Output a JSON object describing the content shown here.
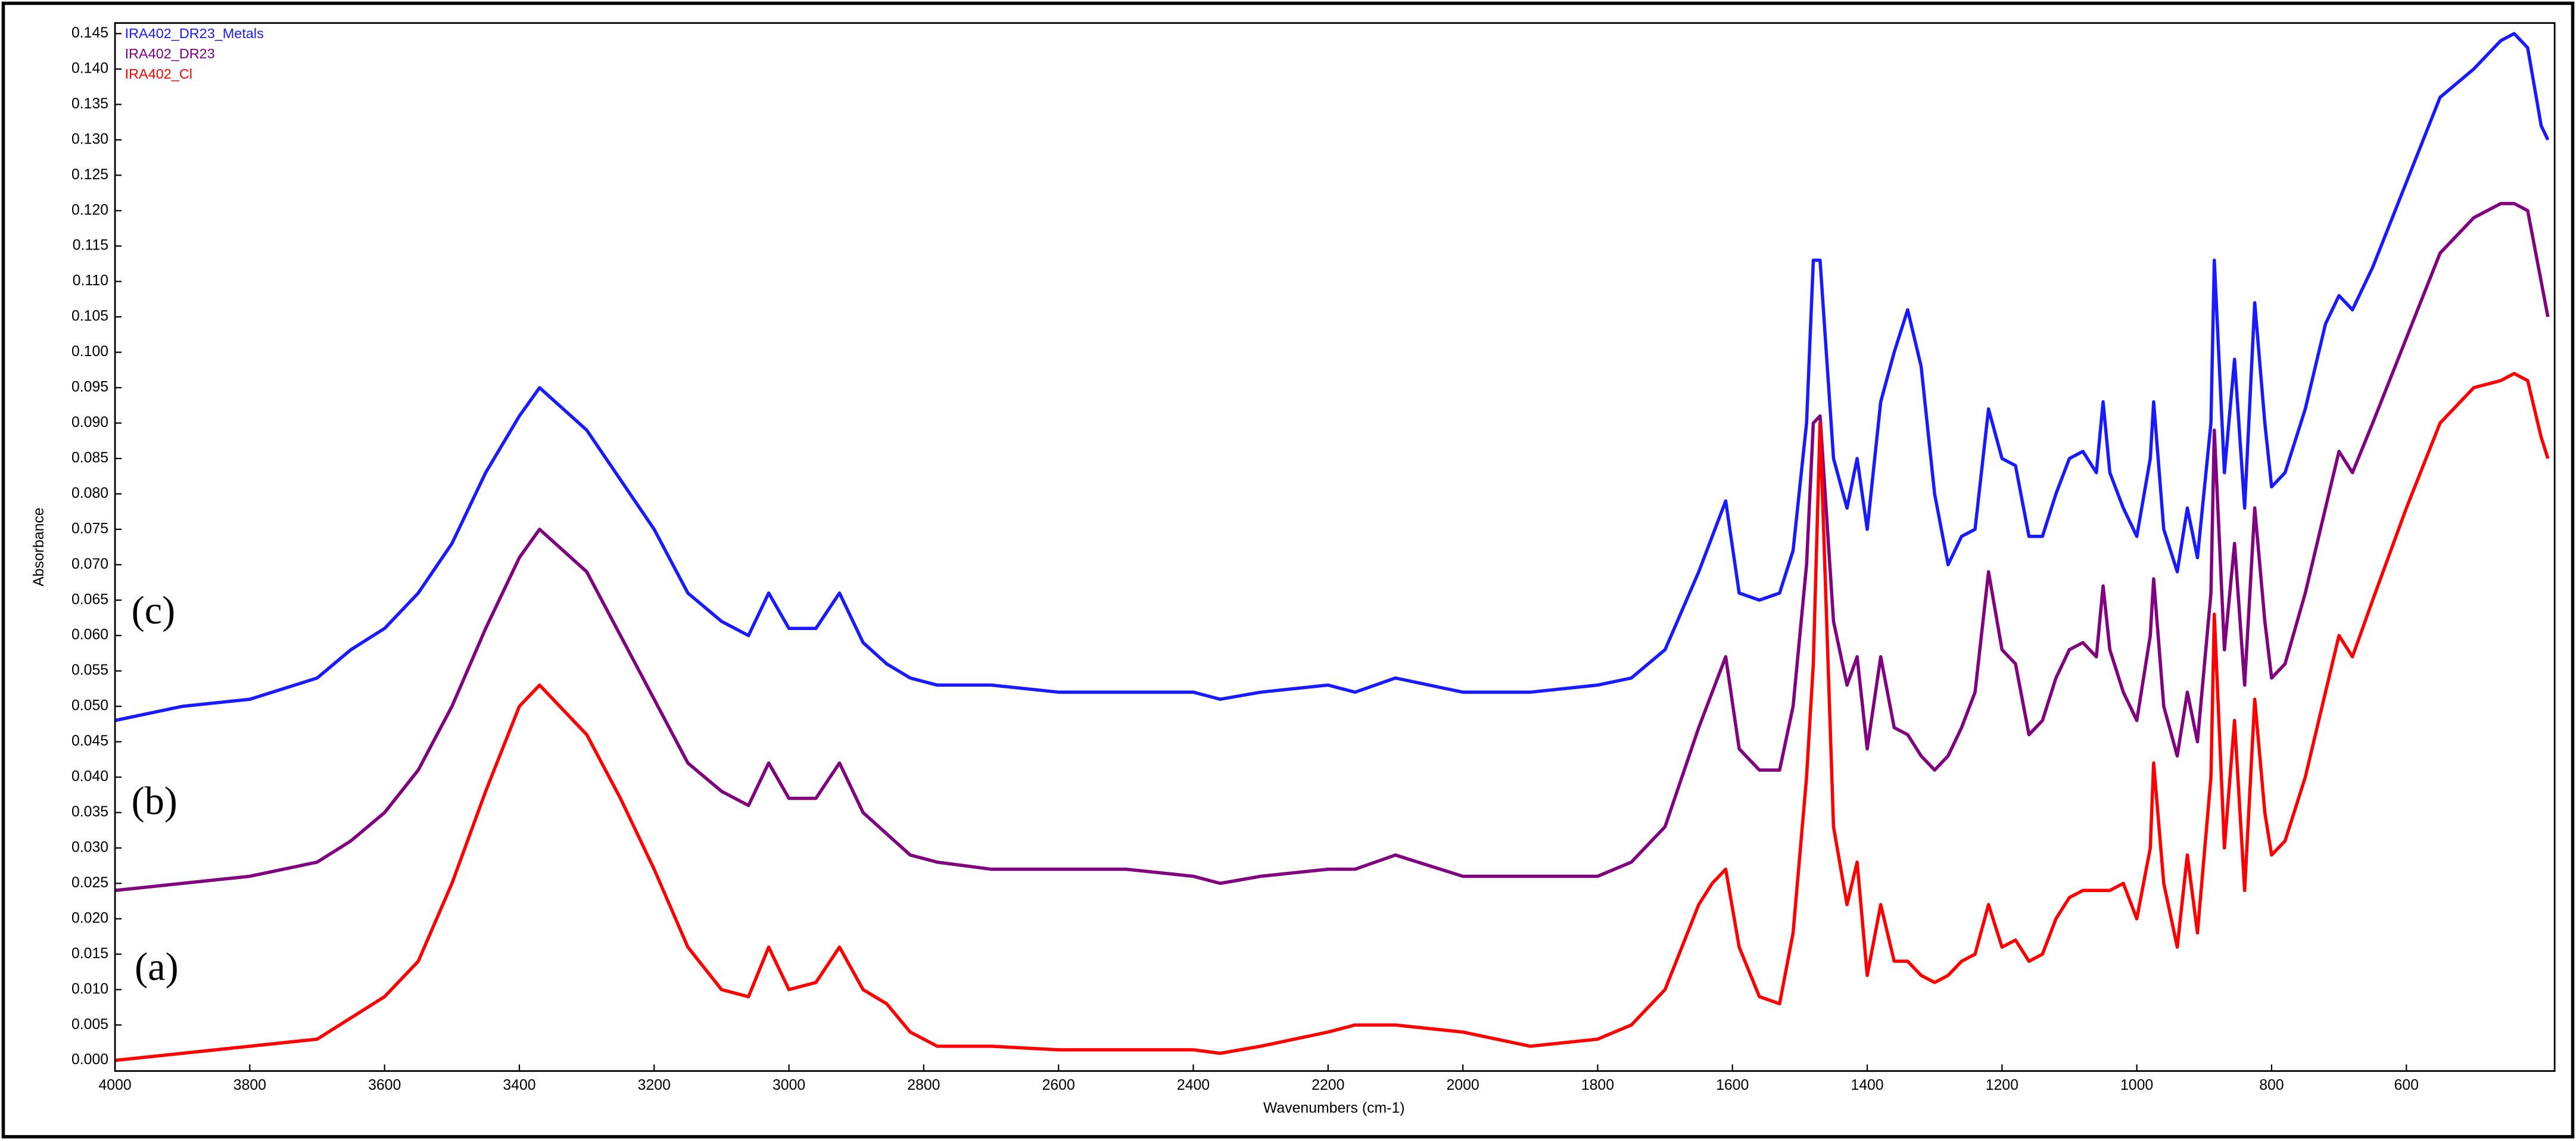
{
  "chart_data": {
    "type": "line",
    "x_label": "Wavenumbers (cm-1)",
    "y_label": "Absorbance",
    "xlim": [
      4000,
      380
    ],
    "ylim": [
      -0.0015,
      0.1465
    ],
    "xticks": [
      4000,
      3800,
      3600,
      3400,
      3200,
      3000,
      2800,
      2600,
      2400,
      2200,
      2000,
      1800,
      1600,
      1400,
      1200,
      1000,
      800,
      600
    ],
    "yticks": [
      {
        "value": 0,
        "label": "0.000"
      },
      {
        "value": 0.005,
        "label": "0.005"
      },
      {
        "value": 0.01,
        "label": "0.010"
      },
      {
        "value": 0.015,
        "label": "0.015"
      },
      {
        "value": 0.02,
        "label": "0.020"
      },
      {
        "value": 0.025,
        "label": "0.025"
      },
      {
        "value": 0.03,
        "label": "0.030"
      },
      {
        "value": 0.035,
        "label": "0.035"
      },
      {
        "value": 0.04,
        "label": "0.040"
      },
      {
        "value": 0.045,
        "label": "0.045"
      },
      {
        "value": 0.05,
        "label": "0.050"
      },
      {
        "value": 0.055,
        "label": "0.055"
      },
      {
        "value": 0.06,
        "label": "0.060"
      },
      {
        "value": 0.065,
        "label": "0.065"
      },
      {
        "value": 0.07,
        "label": "0.070"
      },
      {
        "value": 0.075,
        "label": "0.075"
      },
      {
        "value": 0.08,
        "label": "0.080"
      },
      {
        "value": 0.085,
        "label": "0.085"
      },
      {
        "value": 0.09,
        "label": "0.090"
      },
      {
        "value": 0.095,
        "label": "0.095"
      },
      {
        "value": 0.1,
        "label": "0.100"
      },
      {
        "value": 0.105,
        "label": "0.105"
      },
      {
        "value": 0.11,
        "label": "0.110"
      },
      {
        "value": 0.115,
        "label": "0.115"
      },
      {
        "value": 0.12,
        "label": "0.120"
      },
      {
        "value": 0.125,
        "label": "0.125"
      },
      {
        "value": 0.13,
        "label": "0.130"
      },
      {
        "value": 0.135,
        "label": "0.135"
      },
      {
        "value": 0.14,
        "label": "0.140"
      },
      {
        "value": 0.145,
        "label": "0.145"
      }
    ],
    "grid": false,
    "legend": "upper left",
    "annotations": [
      "(c)",
      "(b)",
      "(a)"
    ],
    "x": [
      4000,
      3900,
      3800,
      3700,
      3650,
      3600,
      3550,
      3500,
      3450,
      3400,
      3370,
      3300,
      3250,
      3200,
      3150,
      3100,
      3060,
      3030,
      3000,
      2960,
      2925,
      2890,
      2855,
      2820,
      2780,
      2700,
      2600,
      2500,
      2400,
      2360,
      2300,
      2200,
      2160,
      2100,
      2000,
      1900,
      1800,
      1750,
      1700,
      1650,
      1630,
      1610,
      1590,
      1560,
      1530,
      1510,
      1490,
      1480,
      1470,
      1450,
      1430,
      1415,
      1400,
      1380,
      1360,
      1340,
      1320,
      1300,
      1280,
      1260,
      1240,
      1220,
      1200,
      1180,
      1160,
      1140,
      1120,
      1100,
      1080,
      1060,
      1050,
      1040,
      1020,
      1000,
      980,
      975,
      960,
      940,
      925,
      910,
      890,
      885,
      870,
      855,
      840,
      825,
      810,
      800,
      780,
      750,
      720,
      700,
      680,
      650,
      600,
      550,
      500,
      460,
      440,
      420,
      400,
      390
    ],
    "series": [
      {
        "name": "IRA402_DR23_Metals",
        "color": "#1a1aff",
        "values": [
          0.048,
          0.05,
          0.051,
          0.054,
          0.058,
          0.061,
          0.066,
          0.073,
          0.083,
          0.091,
          0.095,
          0.089,
          0.082,
          0.075,
          0.066,
          0.062,
          0.06,
          0.066,
          0.061,
          0.061,
          0.066,
          0.059,
          0.056,
          0.054,
          0.053,
          0.053,
          0.052,
          0.052,
          0.052,
          0.051,
          0.052,
          0.053,
          0.052,
          0.054,
          0.052,
          0.052,
          0.053,
          0.054,
          0.058,
          0.069,
          0.074,
          0.079,
          0.066,
          0.065,
          0.066,
          0.072,
          0.09,
          0.113,
          0.113,
          0.085,
          0.078,
          0.085,
          0.075,
          0.093,
          0.1,
          0.106,
          0.098,
          0.08,
          0.07,
          0.074,
          0.075,
          0.092,
          0.085,
          0.084,
          0.074,
          0.074,
          0.08,
          0.085,
          0.086,
          0.083,
          0.093,
          0.083,
          0.078,
          0.074,
          0.085,
          0.093,
          0.075,
          0.069,
          0.078,
          0.071,
          0.09,
          0.113,
          0.083,
          0.099,
          0.078,
          0.107,
          0.09,
          0.081,
          0.083,
          0.092,
          0.104,
          0.108,
          0.106,
          0.112,
          0.124,
          0.136,
          0.14,
          0.144,
          0.145,
          0.143,
          0.132,
          0.13
        ]
      },
      {
        "name": "IRA402_DR23",
        "color": "#800080",
        "values": [
          0.024,
          0.025,
          0.026,
          0.028,
          0.031,
          0.035,
          0.041,
          0.05,
          0.061,
          0.071,
          0.075,
          0.069,
          0.06,
          0.051,
          0.042,
          0.038,
          0.036,
          0.042,
          0.037,
          0.037,
          0.042,
          0.035,
          0.032,
          0.029,
          0.028,
          0.027,
          0.027,
          0.027,
          0.026,
          0.025,
          0.026,
          0.027,
          0.027,
          0.029,
          0.026,
          0.026,
          0.026,
          0.028,
          0.033,
          0.047,
          0.052,
          0.057,
          0.044,
          0.041,
          0.041,
          0.05,
          0.07,
          0.09,
          0.091,
          0.062,
          0.053,
          0.057,
          0.044,
          0.057,
          0.047,
          0.046,
          0.043,
          0.041,
          0.043,
          0.047,
          0.052,
          0.069,
          0.058,
          0.056,
          0.046,
          0.048,
          0.054,
          0.058,
          0.059,
          0.057,
          0.067,
          0.058,
          0.052,
          0.048,
          0.06,
          0.068,
          0.05,
          0.043,
          0.052,
          0.045,
          0.066,
          0.089,
          0.058,
          0.073,
          0.053,
          0.078,
          0.062,
          0.054,
          0.056,
          0.066,
          0.078,
          0.086,
          0.083,
          0.09,
          0.102,
          0.114,
          0.119,
          0.121,
          0.121,
          0.12,
          0.11,
          0.105
        ]
      },
      {
        "name": "IRA402_Cl",
        "color": "#ff0000",
        "values": [
          0.0,
          0.001,
          0.002,
          0.003,
          0.006,
          0.009,
          0.014,
          0.025,
          0.038,
          0.05,
          0.053,
          0.046,
          0.037,
          0.027,
          0.016,
          0.01,
          0.009,
          0.016,
          0.01,
          0.011,
          0.016,
          0.01,
          0.008,
          0.004,
          0.002,
          0.002,
          0.0015,
          0.0015,
          0.0015,
          0.001,
          0.002,
          0.004,
          0.005,
          0.005,
          0.004,
          0.002,
          0.003,
          0.005,
          0.01,
          0.022,
          0.025,
          0.027,
          0.016,
          0.009,
          0.008,
          0.018,
          0.04,
          0.056,
          0.09,
          0.033,
          0.022,
          0.028,
          0.012,
          0.022,
          0.014,
          0.014,
          0.012,
          0.011,
          0.012,
          0.014,
          0.015,
          0.022,
          0.016,
          0.017,
          0.014,
          0.015,
          0.02,
          0.023,
          0.024,
          0.024,
          0.024,
          0.024,
          0.025,
          0.02,
          0.03,
          0.042,
          0.025,
          0.016,
          0.029,
          0.018,
          0.04,
          0.063,
          0.03,
          0.048,
          0.024,
          0.051,
          0.035,
          0.029,
          0.031,
          0.04,
          0.052,
          0.06,
          0.057,
          0.065,
          0.078,
          0.09,
          0.095,
          0.096,
          0.097,
          0.096,
          0.088,
          0.085
        ]
      }
    ]
  }
}
